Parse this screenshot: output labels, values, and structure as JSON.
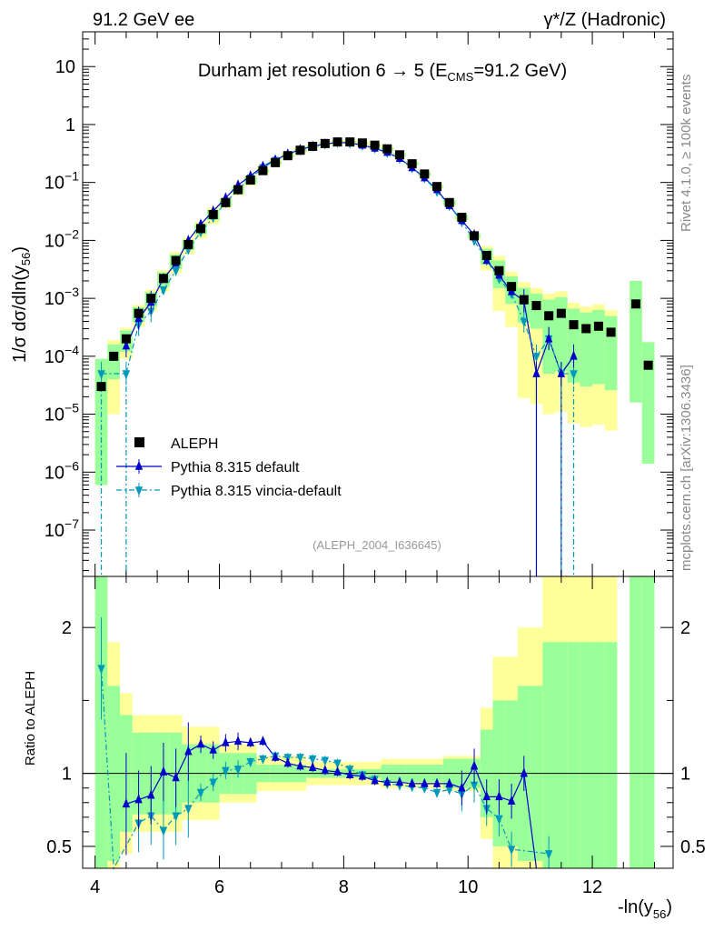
{
  "header": {
    "left": "91.2 GeV ee",
    "right": "γ*/Z (Hadronic)"
  },
  "side": {
    "rivet": "Rivet 4.1.0, ≥ 100k events",
    "mcplots": "mcplots.cern.ch [arXiv:1306.3436]"
  },
  "chart_data": {
    "type": "scatter",
    "title": "Durham jet resolution 6 → 5 (E_CMS=91.2 GeV)",
    "title_parts": {
      "main": "Durham jet resolution 6",
      "arrow": "→",
      "after_arrow": "5 (E",
      "sub": "CMS",
      "end": "=91.2 GeV)"
    },
    "analysis_tag": "(ALEPH_2004_I636645)",
    "xlabel": "-ln(y_56)",
    "xlabel_parts": {
      "main": "-ln(y",
      "sub": "56",
      "end": ")"
    },
    "ylabel": "1/σ dσ/dln(y_56)",
    "ylabel_parts": {
      "main": "1/σ  dσ/dln(y",
      "sub": "56",
      "end": ")"
    },
    "ratio_ylabel": "Ratio to ALEPH",
    "xlim": [
      3.8,
      13.3
    ],
    "ylim_log": [
      -7.8,
      1.6
    ],
    "ratio_ylim": [
      0.35,
      2.35
    ],
    "x_ticks": [
      4,
      6,
      8,
      10,
      12
    ],
    "x_tick_labels": [
      "4",
      "6",
      "8",
      "10",
      "12"
    ],
    "y_ticks": [
      {
        "exp": 1,
        "label": "10"
      },
      {
        "exp": 0,
        "label": "1"
      },
      {
        "exp": -1,
        "base": "10",
        "sup": "−1"
      },
      {
        "exp": -2,
        "base": "10",
        "sup": "−2"
      },
      {
        "exp": -3,
        "base": "10",
        "sup": "−3"
      },
      {
        "exp": -4,
        "base": "10",
        "sup": "−4"
      },
      {
        "exp": -5,
        "base": "10",
        "sup": "−5"
      },
      {
        "exp": -6,
        "base": "10",
        "sup": "−6"
      },
      {
        "exp": -7,
        "base": "10",
        "sup": "−7"
      }
    ],
    "ratio_ticks": [
      {
        "value": 2,
        "label": "2"
      },
      {
        "value": 1,
        "label": "1"
      },
      {
        "value": 0.5,
        "label": "0.5"
      }
    ],
    "legend": [
      {
        "label": "ALEPH",
        "marker": "square",
        "color": "#000000"
      },
      {
        "label": "Pythia 8.315 default",
        "marker": "triangle-up",
        "color": "#0000cc"
      },
      {
        "label": "Pythia 8.315 vincia-default",
        "marker": "triangle-down",
        "color": "#0099bb"
      }
    ],
    "colors": {
      "data": "#000000",
      "default": "#0000cc",
      "vincia": "#0099bb",
      "band_inner": "#99ff99",
      "band_outer": "#ffff99"
    },
    "series": [
      {
        "name": "ALEPH",
        "x": [
          4.1,
          4.3,
          4.5,
          4.7,
          4.9,
          5.1,
          5.3,
          5.5,
          5.7,
          5.9,
          6.1,
          6.3,
          6.5,
          6.7,
          6.9,
          7.1,
          7.3,
          7.5,
          7.7,
          7.9,
          8.1,
          8.3,
          8.5,
          8.7,
          8.9,
          9.1,
          9.3,
          9.5,
          9.7,
          9.9,
          10.1,
          10.3,
          10.5,
          10.7,
          10.9,
          11.1,
          11.3,
          11.5,
          11.7,
          11.9,
          12.1,
          12.3,
          12.7,
          12.9
        ],
        "values": [
          3e-05,
          0.0001,
          0.0002,
          0.00055,
          0.001,
          0.0022,
          0.0045,
          0.0085,
          0.016,
          0.028,
          0.045,
          0.075,
          0.11,
          0.16,
          0.22,
          0.29,
          0.36,
          0.42,
          0.47,
          0.5,
          0.5,
          0.48,
          0.44,
          0.38,
          0.3,
          0.21,
          0.14,
          0.085,
          0.045,
          0.025,
          0.012,
          0.0055,
          0.003,
          0.0016,
          0.00095,
          0.00075,
          0.0005,
          0.00055,
          0.00035,
          0.0003,
          0.00033,
          0.00026,
          0.0008,
          7e-05
        ]
      },
      {
        "name": "Pythia 8.315 default",
        "x": [
          4.5,
          4.7,
          4.9,
          5.1,
          5.3,
          5.5,
          5.7,
          5.9,
          6.1,
          6.3,
          6.5,
          6.7,
          6.9,
          7.1,
          7.3,
          7.5,
          7.7,
          7.9,
          8.1,
          8.3,
          8.5,
          8.7,
          8.9,
          9.1,
          9.3,
          9.5,
          9.7,
          9.9,
          10.1,
          10.3,
          10.5,
          10.7,
          10.9,
          11.1,
          11.3,
          11.5,
          11.7
        ],
        "values": [
          0.00015,
          0.00045,
          0.00085,
          0.0022,
          0.004,
          0.01,
          0.019,
          0.032,
          0.054,
          0.09,
          0.13,
          0.19,
          0.245,
          0.31,
          0.37,
          0.42,
          0.46,
          0.49,
          0.48,
          0.44,
          0.39,
          0.33,
          0.26,
          0.18,
          0.12,
          0.075,
          0.04,
          0.022,
          0.0125,
          0.0045,
          0.0025,
          0.0013,
          0.0009,
          5e-05,
          0.0002,
          5e-05,
          0.0001
        ]
      },
      {
        "name": "Pythia 8.315 vincia-default",
        "x": [
          4.1,
          4.5,
          4.7,
          4.9,
          5.1,
          5.3,
          5.5,
          5.7,
          5.9,
          6.1,
          6.3,
          6.5,
          6.7,
          6.9,
          7.1,
          7.3,
          7.5,
          7.7,
          7.9,
          8.1,
          8.3,
          8.5,
          8.7,
          8.9,
          9.1,
          9.3,
          9.5,
          9.7,
          9.9,
          10.1,
          10.3,
          10.5,
          10.7,
          10.9,
          11.1,
          11.3,
          11.5,
          11.7
        ],
        "values": [
          5e-05,
          5e-05,
          0.00035,
          0.0006,
          0.0014,
          0.003,
          0.007,
          0.014,
          0.025,
          0.045,
          0.075,
          0.12,
          0.18,
          0.24,
          0.3,
          0.36,
          0.42,
          0.46,
          0.49,
          0.48,
          0.44,
          0.39,
          0.33,
          0.26,
          0.18,
          0.12,
          0.07,
          0.04,
          0.021,
          0.01,
          0.0045,
          0.0022,
          0.0012,
          0.0004,
          0.0001,
          0.0002,
          5e-05,
          5e-05
        ]
      }
    ],
    "ratio_series": [
      {
        "name": "Pythia 8.315 default",
        "x": [
          4.5,
          4.7,
          4.9,
          5.1,
          5.3,
          5.5,
          5.7,
          5.9,
          6.1,
          6.3,
          6.5,
          6.7,
          6.9,
          7.1,
          7.3,
          7.5,
          7.7,
          7.9,
          8.1,
          8.3,
          8.5,
          8.7,
          8.9,
          9.1,
          9.3,
          9.5,
          9.7,
          9.9,
          10.1,
          10.3,
          10.5,
          10.7,
          10.9,
          11.1
        ],
        "values": [
          0.79,
          0.82,
          0.85,
          1.01,
          0.97,
          1.15,
          1.2,
          1.16,
          1.21,
          1.22,
          1.21,
          1.22,
          1.11,
          1.07,
          1.05,
          1.04,
          1.02,
          1.01,
          0.99,
          0.98,
          0.95,
          0.94,
          0.94,
          0.93,
          0.93,
          0.93,
          0.93,
          0.9,
          1.05,
          0.84,
          0.84,
          0.81,
          1.0,
          0.2
        ]
      },
      {
        "name": "Pythia 8.315 vincia-default",
        "x": [
          4.1,
          4.3,
          4.7,
          4.9,
          5.1,
          5.3,
          5.5,
          5.7,
          5.9,
          6.1,
          6.3,
          6.5,
          6.7,
          6.9,
          7.1,
          7.3,
          7.5,
          7.7,
          7.9,
          8.1,
          8.3,
          8.5,
          8.7,
          8.9,
          9.1,
          9.3,
          9.5,
          9.7,
          9.9,
          10.1,
          10.3,
          10.5,
          10.7,
          11.3
        ],
        "values": [
          1.72,
          0.2,
          0.66,
          0.71,
          0.61,
          0.71,
          0.76,
          0.87,
          0.94,
          1.02,
          1.03,
          1.08,
          1.1,
          1.12,
          1.11,
          1.11,
          1.1,
          1.09,
          1.07,
          1.03,
          0.99,
          0.96,
          0.93,
          0.92,
          0.91,
          0.9,
          0.87,
          0.89,
          0.86,
          0.92,
          0.76,
          0.69,
          0.48,
          0.45
        ]
      }
    ]
  }
}
